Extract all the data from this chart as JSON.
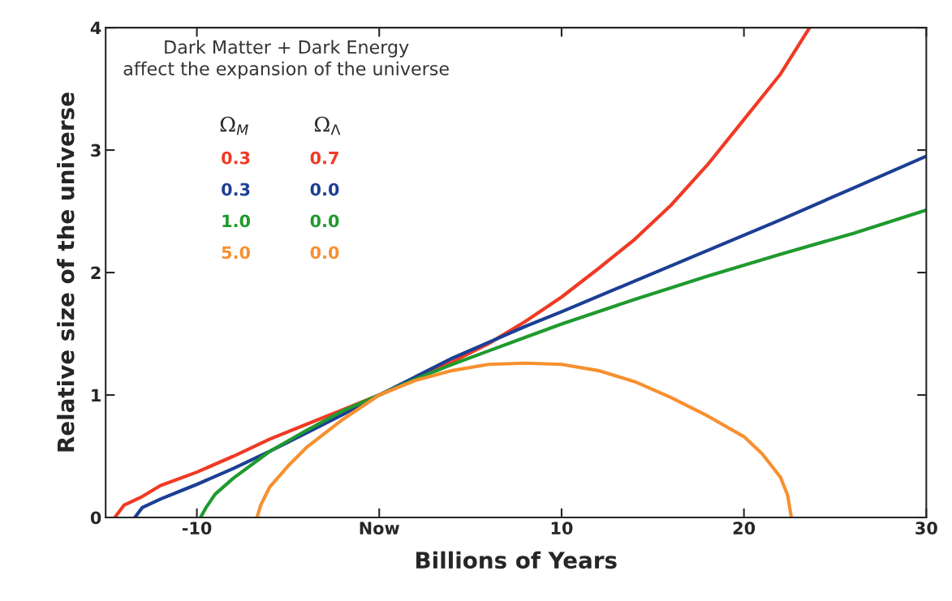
{
  "chart_data": {
    "type": "line",
    "xlabel": "Billions of Years",
    "ylabel": "Relative size of the universe",
    "annotations": [
      "Dark Matter + Dark Energy\naffect the expansion of the universe"
    ],
    "legend_title": "Ω$_{M}$          Ω$_{Λ}$",
    "legend": "top left",
    "xlim": [
      -15,
      30
    ],
    "xticks": [
      -10,
      {
        "value": 0,
        "label": "Now"
      },
      10,
      20,
      30
    ],
    "ylim": [
      0,
      4
    ],
    "yticks": [
      0,
      1,
      2,
      3,
      4
    ],
    "grid": false,
    "series": [
      {
        "name": "0.3          0.7",
        "color": "#f03a24",
        "x": [
          -14.5,
          -14,
          -13,
          -12,
          -10,
          -8,
          -6,
          -4,
          -2,
          0,
          2,
          4,
          6,
          8,
          10,
          12,
          14,
          16,
          18,
          20,
          22,
          23.6
        ],
        "values": [
          0,
          0.1,
          0.17,
          0.26,
          0.37,
          0.5,
          0.64,
          0.76,
          0.88,
          1,
          1.13,
          1.27,
          1.42,
          1.6,
          1.8,
          2.03,
          2.27,
          2.55,
          2.88,
          3.25,
          3.62,
          4.0
        ]
      },
      {
        "name": "0.3          0.0",
        "color": "#1c3f94",
        "x": [
          -13.4,
          -13,
          -12,
          -11,
          -10,
          -8,
          -6,
          -4,
          -2,
          0,
          2,
          4,
          6,
          8,
          10,
          14,
          18,
          22,
          26,
          30
        ],
        "values": [
          0,
          0.08,
          0.15,
          0.21,
          0.27,
          0.4,
          0.54,
          0.69,
          0.84,
          1,
          1.15,
          1.3,
          1.43,
          1.56,
          1.68,
          1.93,
          2.18,
          2.43,
          2.69,
          2.95
        ]
      },
      {
        "name": "1.0          0.0",
        "color": "#1f9a2e",
        "x": [
          -9.8,
          -9.5,
          -9,
          -8,
          -6,
          -4,
          -2,
          0,
          2,
          4,
          6,
          8,
          10,
          14,
          18,
          22,
          26,
          30
        ],
        "values": [
          0,
          0.08,
          0.19,
          0.32,
          0.54,
          0.71,
          0.87,
          1,
          1.13,
          1.25,
          1.36,
          1.47,
          1.58,
          1.78,
          1.97,
          2.15,
          2.32,
          2.51
        ]
      },
      {
        "name": "5.0          0.0",
        "color": "#f7902f",
        "x": [
          -6.7,
          -6.5,
          -6,
          -5,
          -4,
          -2,
          0,
          2,
          4,
          6,
          8,
          10,
          12,
          14,
          16,
          18,
          20,
          21,
          22,
          22.4,
          22.6
        ],
        "values": [
          0,
          0.1,
          0.25,
          0.42,
          0.57,
          0.8,
          1,
          1.12,
          1.2,
          1.25,
          1.26,
          1.25,
          1.2,
          1.11,
          0.98,
          0.83,
          0.66,
          0.52,
          0.33,
          0.18,
          0
        ]
      }
    ]
  }
}
